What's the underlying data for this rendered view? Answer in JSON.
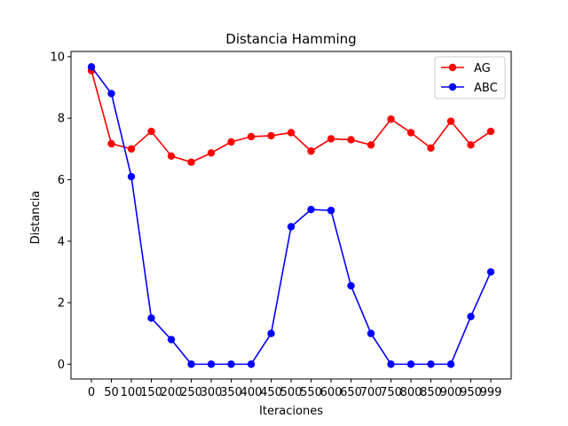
{
  "chart_data": {
    "type": "line",
    "title": "Distancia Hamming",
    "xlabel": "Iteraciones",
    "ylabel": "Distancia",
    "ylim": [
      -0.48,
      10.17
    ],
    "grid": false,
    "legend_placement": "top-right",
    "categories": [
      "0",
      "50",
      "100",
      "150",
      "200",
      "250",
      "300",
      "350",
      "400",
      "450",
      "500",
      "550",
      "600",
      "650",
      "700",
      "750",
      "800",
      "850",
      "900",
      "950",
      "999"
    ],
    "yticks": [
      0,
      2,
      4,
      6,
      8,
      10
    ],
    "series": [
      {
        "name": "AG",
        "color": "#ff0000",
        "values": [
          9.55,
          7.17,
          7.0,
          7.57,
          6.77,
          6.57,
          6.87,
          7.23,
          7.4,
          7.43,
          7.53,
          6.93,
          7.33,
          7.3,
          7.13,
          7.97,
          7.53,
          7.03,
          7.9,
          7.13,
          7.57
        ]
      },
      {
        "name": "ABC",
        "color": "#0000ff",
        "values": [
          9.67,
          8.8,
          6.1,
          1.5,
          0.8,
          0.0,
          0.0,
          0.0,
          0.0,
          1.0,
          4.47,
          5.03,
          5.0,
          2.55,
          1.0,
          0.0,
          0.0,
          0.0,
          0.0,
          1.55,
          3.0
        ]
      }
    ]
  }
}
